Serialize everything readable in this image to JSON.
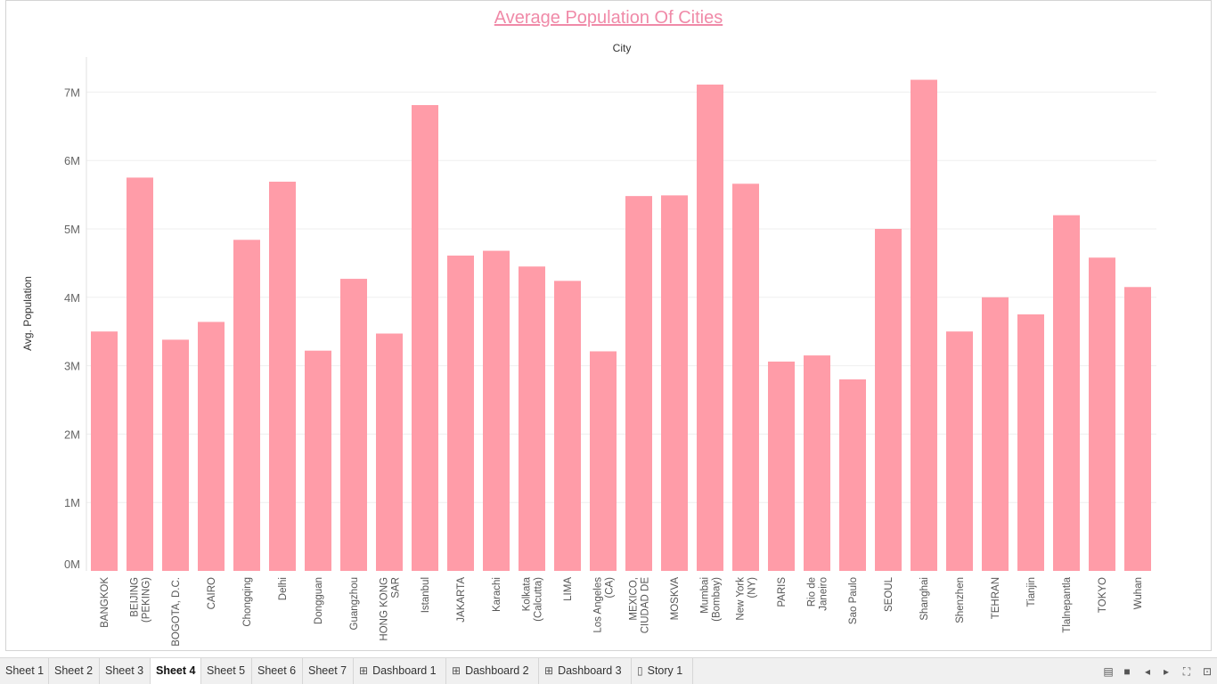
{
  "chart_data": {
    "type": "bar",
    "title": "Average Population Of Cities",
    "column_header": "City",
    "ylabel": "Avg. Population",
    "ylim": [
      0,
      7700000
    ],
    "yticks": [
      0,
      1000000,
      2000000,
      3000000,
      4000000,
      5000000,
      6000000,
      7000000
    ],
    "ytick_labels": [
      "0M",
      "1M",
      "2M",
      "3M",
      "4M",
      "5M",
      "6M",
      "7M"
    ],
    "grid": true,
    "bar_color": "#ff9ca8",
    "categories": [
      [
        "BANGKOK"
      ],
      [
        "BEIJING",
        "(PEKING)"
      ],
      [
        "BOGOTA, D.C."
      ],
      [
        "CAIRO"
      ],
      [
        "Chongqing"
      ],
      [
        "Delhi"
      ],
      [
        "Dongguan"
      ],
      [
        "Guangzhou"
      ],
      [
        "HONG KONG",
        "SAR"
      ],
      [
        "Istanbul"
      ],
      [
        "JAKARTA"
      ],
      [
        "Karachi"
      ],
      [
        "Kolkata",
        "(Calcutta)"
      ],
      [
        "LIMA"
      ],
      [
        "Los Angeles",
        "(CA)"
      ],
      [
        "MEXICO,",
        "CIUDAD DE"
      ],
      [
        "MOSKVA"
      ],
      [
        "Mumbai",
        "(Bombay)"
      ],
      [
        "New York",
        "(NY)"
      ],
      [
        "PARIS"
      ],
      [
        "Rio de",
        "Janeiro"
      ],
      [
        "Sao Paulo"
      ],
      [
        "SEOUL"
      ],
      [
        "Shanghai"
      ],
      [
        "Shenzhen"
      ],
      [
        "TEHRAN"
      ],
      [
        "Tianjin"
      ],
      [
        "Tlalnepantla"
      ],
      [
        "TOKYO"
      ],
      [
        "Wuhan"
      ]
    ],
    "values": [
      3500000,
      5750000,
      3380000,
      3640000,
      4840000,
      5690000,
      3220000,
      4270000,
      3470000,
      6810000,
      4610000,
      4680000,
      4450000,
      4240000,
      3210000,
      5480000,
      5490000,
      7110000,
      5660000,
      3060000,
      3150000,
      2800000,
      5000000,
      7180000,
      3500000,
      4000000,
      3750000,
      5200000,
      4580000,
      4150000
    ]
  },
  "tabs": [
    {
      "label": "Sheet 1",
      "icon": "",
      "active": false
    },
    {
      "label": "Sheet 2",
      "icon": "",
      "active": false
    },
    {
      "label": "Sheet 3",
      "icon": "",
      "active": false
    },
    {
      "label": "Sheet 4",
      "icon": "",
      "active": true
    },
    {
      "label": "Sheet 5",
      "icon": "",
      "active": false
    },
    {
      "label": "Sheet 6",
      "icon": "",
      "active": false
    },
    {
      "label": "Sheet 7",
      "icon": "",
      "active": false
    },
    {
      "label": "Dashboard 1",
      "icon": "dashboard-icon",
      "active": false
    },
    {
      "label": "Dashboard 2",
      "icon": "dashboard-icon",
      "active": false
    },
    {
      "label": "Dashboard 3",
      "icon": "dashboard-icon",
      "active": false
    },
    {
      "label": "Story 1",
      "icon": "story-icon",
      "active": false
    }
  ],
  "controls": [
    "filmstrip-icon",
    "single-sheet-icon",
    "prev-icon",
    "next-icon",
    "fullscreen-icon",
    "presentation-icon"
  ]
}
